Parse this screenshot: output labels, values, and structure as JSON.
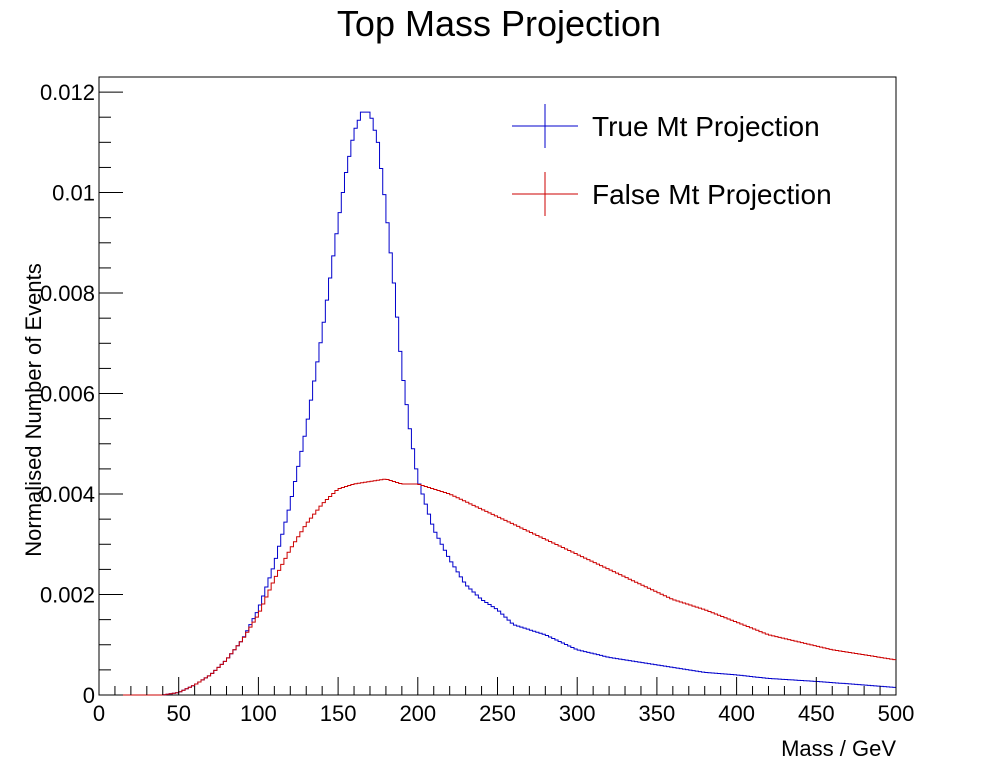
{
  "chart_data": {
    "type": "line",
    "title": "Top Mass Projection",
    "xlabel": "Mass / GeV",
    "ylabel": "Normalised Number of Events",
    "xlim": [
      0,
      500
    ],
    "ylim": [
      0,
      0.0123
    ],
    "xticks": [
      0,
      50,
      100,
      150,
      200,
      250,
      300,
      350,
      400,
      450,
      500
    ],
    "xtick_labels": [
      "0",
      "50",
      "100",
      "150",
      "200",
      "250",
      "300",
      "350",
      "400",
      "450",
      "500"
    ],
    "yticks": [
      0,
      0.002,
      0.004,
      0.006,
      0.008,
      0.01,
      0.012
    ],
    "ytick_labels": [
      "0",
      "0.002",
      "0.004",
      "0.006",
      "0.008",
      "0.01",
      "0.012"
    ],
    "grid": false,
    "legend_position": "top-right",
    "series": [
      {
        "name": "True Mt Projection",
        "color": "#0000cc",
        "x": [
          0,
          40,
          50,
          60,
          70,
          80,
          90,
          100,
          110,
          120,
          130,
          140,
          145,
          150,
          155,
          160,
          165,
          170,
          175,
          180,
          185,
          190,
          195,
          200,
          210,
          220,
          230,
          240,
          250,
          260,
          280,
          300,
          320,
          350,
          380,
          400,
          420,
          450,
          480,
          500
        ],
        "y": [
          0,
          0,
          5e-05,
          0.0002,
          0.0004,
          0.0007,
          0.0011,
          0.0017,
          0.0026,
          0.0038,
          0.0053,
          0.0072,
          0.0083,
          0.0094,
          0.0104,
          0.0112,
          0.0116,
          0.0116,
          0.011,
          0.0097,
          0.0082,
          0.0065,
          0.0053,
          0.0043,
          0.0033,
          0.0027,
          0.0022,
          0.0019,
          0.0017,
          0.0014,
          0.0012,
          0.0009,
          0.00075,
          0.0006,
          0.00045,
          0.0004,
          0.00033,
          0.00027,
          0.0002,
          0.00015
        ]
      },
      {
        "name": "False Mt Projection",
        "color": "#cc0000",
        "x": [
          0,
          40,
          50,
          60,
          70,
          80,
          90,
          100,
          110,
          120,
          130,
          140,
          150,
          160,
          170,
          180,
          190,
          200,
          210,
          220,
          240,
          260,
          280,
          300,
          320,
          340,
          360,
          380,
          400,
          420,
          440,
          460,
          480,
          500
        ],
        "y": [
          0,
          0,
          5e-05,
          0.0002,
          0.0004,
          0.0007,
          0.0011,
          0.0016,
          0.0023,
          0.0029,
          0.0034,
          0.0038,
          0.0041,
          0.0042,
          0.00425,
          0.0043,
          0.0042,
          0.0042,
          0.0041,
          0.004,
          0.0037,
          0.0034,
          0.0031,
          0.0028,
          0.0025,
          0.0022,
          0.0019,
          0.0017,
          0.00145,
          0.0012,
          0.00105,
          0.0009,
          0.0008,
          0.0007
        ]
      }
    ]
  }
}
